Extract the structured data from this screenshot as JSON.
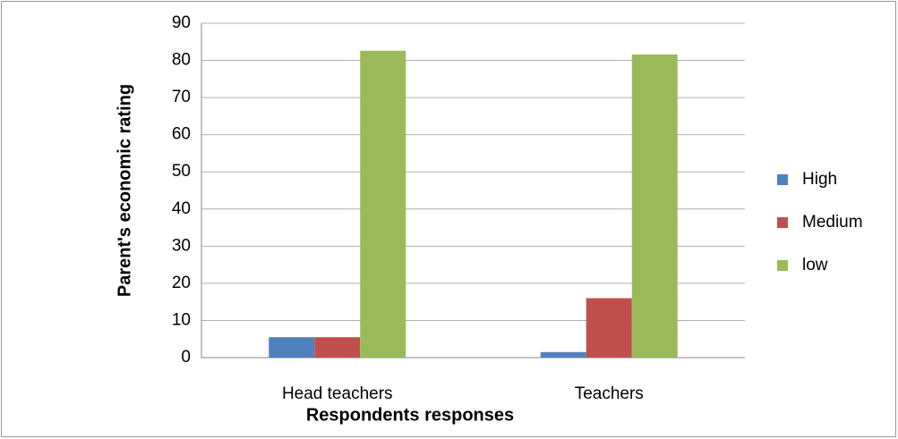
{
  "chart_data": {
    "type": "bar",
    "categories": [
      "Head teachers",
      "Teachers"
    ],
    "series": [
      {
        "name": "High",
        "color": "#4f81bd",
        "values": [
          5.5,
          1.5
        ]
      },
      {
        "name": "Medium",
        "color": "#c0504d",
        "values": [
          5.5,
          16
        ]
      },
      {
        "name": "low",
        "color": "#9bbb59",
        "values": [
          82.6,
          81.6
        ]
      }
    ],
    "ylim": [
      0,
      90
    ],
    "yticks": [
      0,
      10,
      20,
      30,
      40,
      50,
      60,
      70,
      80,
      90
    ],
    "y_label": "Parent's economic rating",
    "x_label": "Respondents responses",
    "grid": true,
    "legend": "right"
  }
}
